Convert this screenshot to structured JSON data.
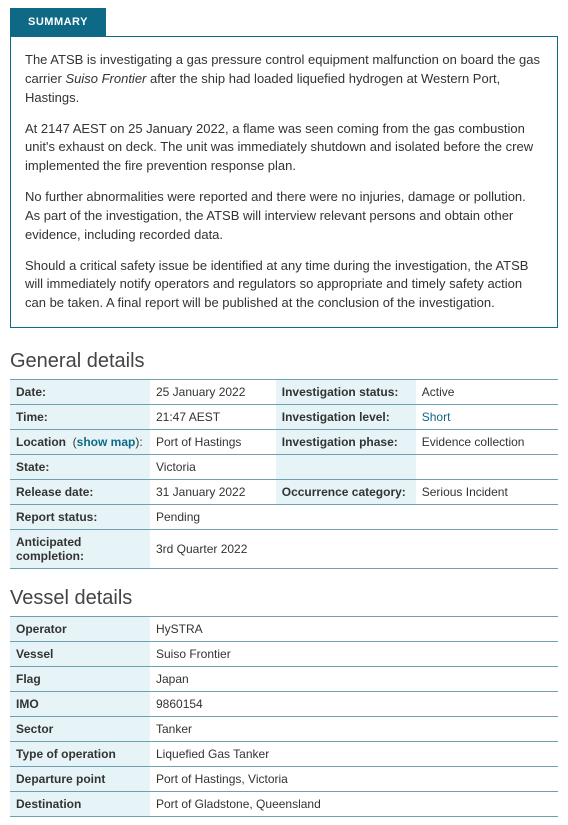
{
  "colors": {
    "accent": "#0d6986",
    "row_border": "#6ea0b0",
    "label_bg": "#e6f4f7"
  },
  "summary": {
    "tab_label": "SUMMARY",
    "paragraphs": [
      "The ATSB is investigating a gas pressure control equipment malfunction on board the gas carrier <em>Suiso Frontier</em> after the ship had loaded liquefied hydrogen at Western Port, Hastings.",
      "At 2147 AEST on 25 January 2022, a flame was seen coming from the gas combustion unit's exhaust on deck. The unit was immediately shutdown and isolated before the crew implemented the fire prevention response plan.",
      "No further abnormalities were reported and there were no injuries, damage or pollution. As part of the investigation, the ATSB will interview relevant persons and obtain other evidence, including recorded data.",
      "Should a critical safety issue be identified at any time during the investigation, the ATSB will immediately notify operators and regulators so appropriate and timely safety action can be taken. A final report will be published at the conclusion of the investigation."
    ]
  },
  "general": {
    "title": "General details",
    "show_map_text": "show map",
    "rows": {
      "date_label": "Date:",
      "date_value": "25 January 2022",
      "inv_status_label": "Investigation status:",
      "inv_status_value": "Active",
      "time_label": "Time:",
      "time_value": "21:47 AEST",
      "inv_level_label": "Investigation level:",
      "inv_level_value": "Short",
      "location_label": "Location",
      "location_value": "Port of Hastings",
      "inv_phase_label": "Investigation phase:",
      "inv_phase_value": "Evidence collection",
      "state_label": "State:",
      "state_value": "Victoria",
      "release_label": "Release date:",
      "release_value": "31 January 2022",
      "occ_cat_label": "Occurrence category:",
      "occ_cat_value": "Serious Incident",
      "report_status_label": "Report status:",
      "report_status_value": "Pending",
      "anticipated_label": "Anticipated completion:",
      "anticipated_value": "3rd Quarter 2022"
    }
  },
  "vessel": {
    "title": "Vessel details",
    "rows": [
      {
        "label": "Operator",
        "value": "HySTRA"
      },
      {
        "label": "Vessel",
        "value": "Suiso Frontier"
      },
      {
        "label": "Flag",
        "value": "Japan"
      },
      {
        "label": "IMO",
        "value": "9860154"
      },
      {
        "label": "Sector",
        "value": "Tanker"
      },
      {
        "label": "Type of operation",
        "value": "Liquefied Gas Tanker"
      },
      {
        "label": "Departure point",
        "value": "Port of Hastings, Victoria"
      },
      {
        "label": "Destination",
        "value": "Port of Gladstone, Queensland"
      }
    ]
  }
}
